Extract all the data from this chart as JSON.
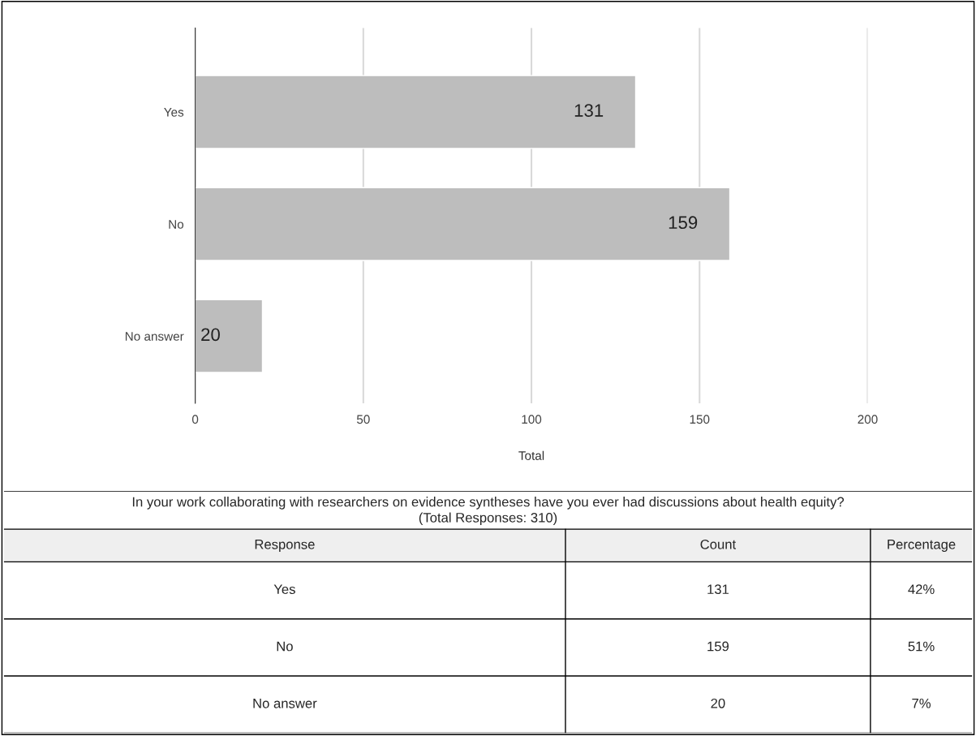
{
  "chart_data": [
    {
      "type": "bar",
      "orientation": "horizontal",
      "categories": [
        "Yes",
        "No",
        "No answer"
      ],
      "values": [
        131,
        159,
        20
      ],
      "color": "#bdbdbd",
      "xlabel": "Total",
      "xlim": [
        0,
        200
      ],
      "xticks": [
        0,
        50,
        100,
        150,
        200
      ],
      "grid": "x",
      "data_labels": true
    },
    {
      "type": "other",
      "title": "In your work collaborating with researchers on evidence syntheses have you ever had discussions about health equity?",
      "subtitle": "(Total Responses: 310)",
      "annotations": [
        "Response",
        "Count",
        "Percentage",
        "Yes",
        "131",
        "42%",
        "No",
        "159",
        "51%",
        "No answer",
        "20",
        "7%"
      ]
    }
  ]
}
